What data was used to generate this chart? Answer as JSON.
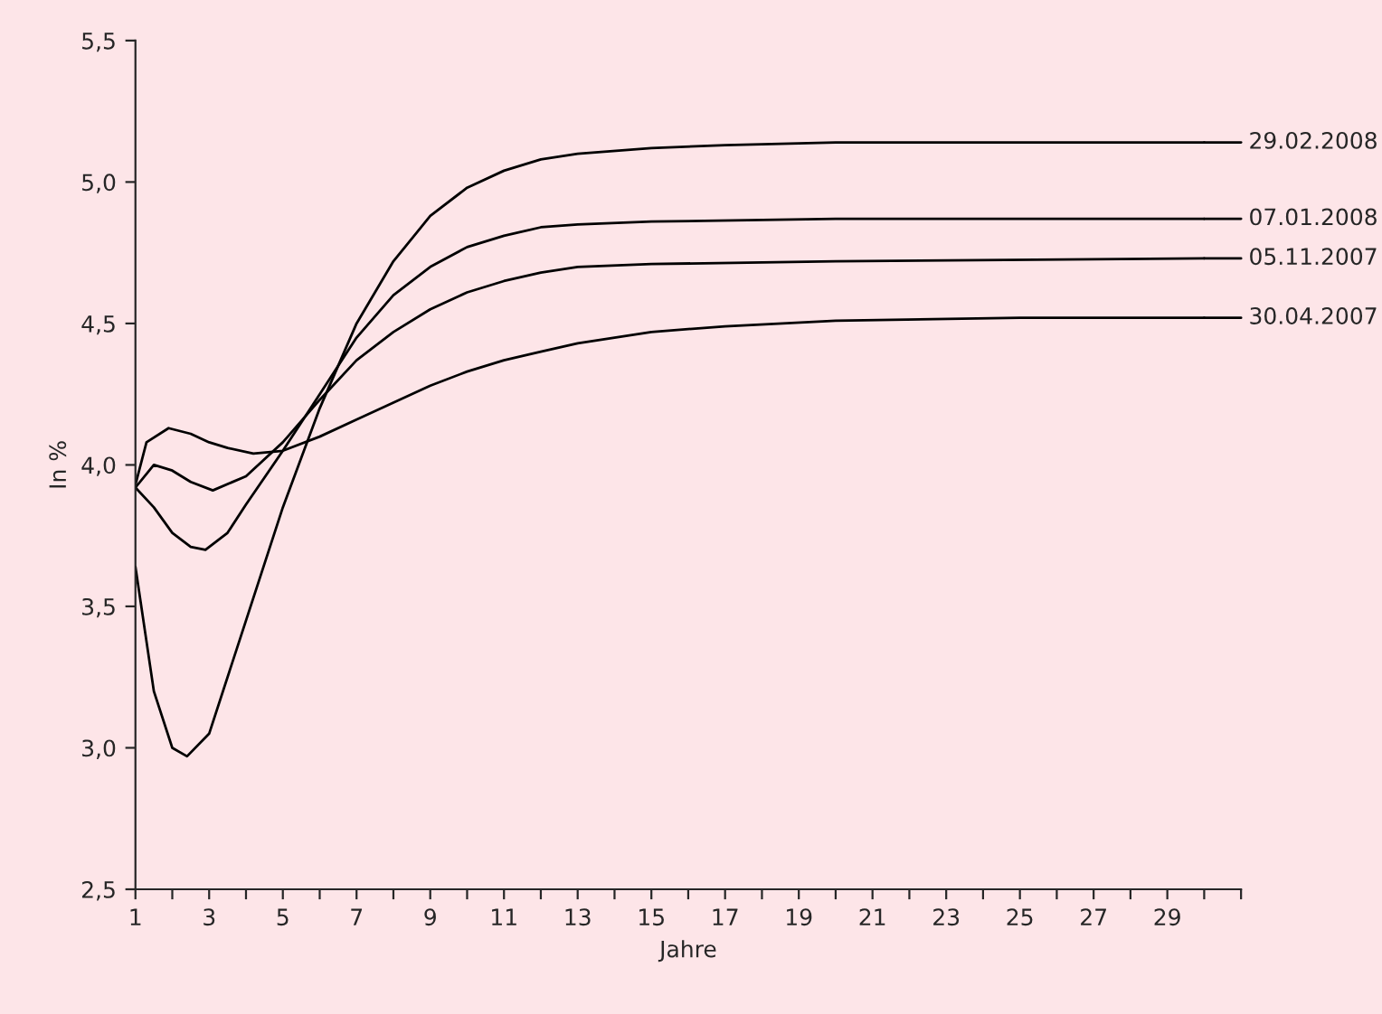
{
  "chart_data": {
    "type": "line",
    "xlabel": "Jahre",
    "ylabel": "In %",
    "xlim": [
      1,
      31
    ],
    "xticks": [
      {
        "value": 1,
        "label": "1"
      },
      {
        "value": 2,
        "label": null
      },
      {
        "value": 3,
        "label": "3"
      },
      {
        "value": 4,
        "label": null
      },
      {
        "value": 5,
        "label": "5"
      },
      {
        "value": 6,
        "label": null
      },
      {
        "value": 7,
        "label": "7"
      },
      {
        "value": 8,
        "label": null
      },
      {
        "value": 9,
        "label": "9"
      },
      {
        "value": 10,
        "label": null
      },
      {
        "value": 11,
        "label": "11"
      },
      {
        "value": 12,
        "label": null
      },
      {
        "value": 13,
        "label": "13"
      },
      {
        "value": 14,
        "label": null
      },
      {
        "value": 15,
        "label": "15"
      },
      {
        "value": 16,
        "label": null
      },
      {
        "value": 17,
        "label": "17"
      },
      {
        "value": 18,
        "label": null
      },
      {
        "value": 19,
        "label": "19"
      },
      {
        "value": 20,
        "label": null
      },
      {
        "value": 21,
        "label": "21"
      },
      {
        "value": 22,
        "label": null
      },
      {
        "value": 23,
        "label": "23"
      },
      {
        "value": 24,
        "label": null
      },
      {
        "value": 25,
        "label": "25"
      },
      {
        "value": 26,
        "label": null
      },
      {
        "value": 27,
        "label": "27"
      },
      {
        "value": 28,
        "label": null
      },
      {
        "value": 29,
        "label": "29"
      },
      {
        "value": 30,
        "label": null
      },
      {
        "value": 31,
        "label": null
      }
    ],
    "ylim": [
      2.5,
      5.5
    ],
    "yticks": [
      {
        "value": 2.5,
        "label": "2,5"
      },
      {
        "value": 3.0,
        "label": "3,0"
      },
      {
        "value": 3.5,
        "label": "3,5"
      },
      {
        "value": 4.0,
        "label": "4,0"
      },
      {
        "value": 4.5,
        "label": "4,5"
      },
      {
        "value": 5.0,
        "label": "5,0"
      },
      {
        "value": 5.5,
        "label": "5,5"
      }
    ],
    "grid": false,
    "legend": "right",
    "marker": "none",
    "line_style": "solid",
    "series": [
      {
        "name": "29.02.2008",
        "color": "#000000",
        "x": [
          1,
          1.5,
          2,
          2.4,
          3,
          4,
          5,
          6,
          7,
          8,
          9,
          10,
          11,
          12,
          13,
          15,
          17,
          20,
          25,
          30
        ],
        "values": [
          3.64,
          3.2,
          3.0,
          2.97,
          3.05,
          3.45,
          3.85,
          4.2,
          4.5,
          4.72,
          4.88,
          4.98,
          5.04,
          5.08,
          5.1,
          5.12,
          5.13,
          5.14,
          5.14,
          5.14
        ]
      },
      {
        "name": "07.01.2008",
        "color": "#000000",
        "x": [
          1,
          1.5,
          2,
          2.5,
          2.9,
          3.5,
          4,
          5,
          6,
          7,
          8,
          9,
          10,
          11,
          12,
          13,
          15,
          20,
          30
        ],
        "values": [
          3.92,
          3.85,
          3.76,
          3.71,
          3.7,
          3.76,
          3.86,
          4.05,
          4.25,
          4.45,
          4.6,
          4.7,
          4.77,
          4.81,
          4.84,
          4.85,
          4.86,
          4.87,
          4.87
        ]
      },
      {
        "name": "05.11.2007",
        "color": "#000000",
        "x": [
          1,
          1.5,
          2,
          2.5,
          3.1,
          4,
          5,
          6,
          7,
          8,
          9,
          10,
          11,
          12,
          13,
          15,
          20,
          30
        ],
        "values": [
          3.92,
          4.0,
          3.98,
          3.94,
          3.91,
          3.96,
          4.08,
          4.23,
          4.37,
          4.47,
          4.55,
          4.61,
          4.65,
          4.68,
          4.7,
          4.71,
          4.72,
          4.73
        ]
      },
      {
        "name": "30.04.2007",
        "color": "#000000",
        "x": [
          1,
          1.3,
          1.9,
          2.5,
          3,
          3.5,
          4.2,
          5,
          6,
          7,
          8,
          9,
          10,
          11,
          12,
          13,
          15,
          17,
          20,
          25,
          30
        ],
        "values": [
          3.93,
          4.08,
          4.13,
          4.11,
          4.08,
          4.06,
          4.04,
          4.05,
          4.1,
          4.16,
          4.22,
          4.28,
          4.33,
          4.37,
          4.4,
          4.43,
          4.47,
          4.49,
          4.51,
          4.52,
          4.52
        ]
      }
    ]
  }
}
